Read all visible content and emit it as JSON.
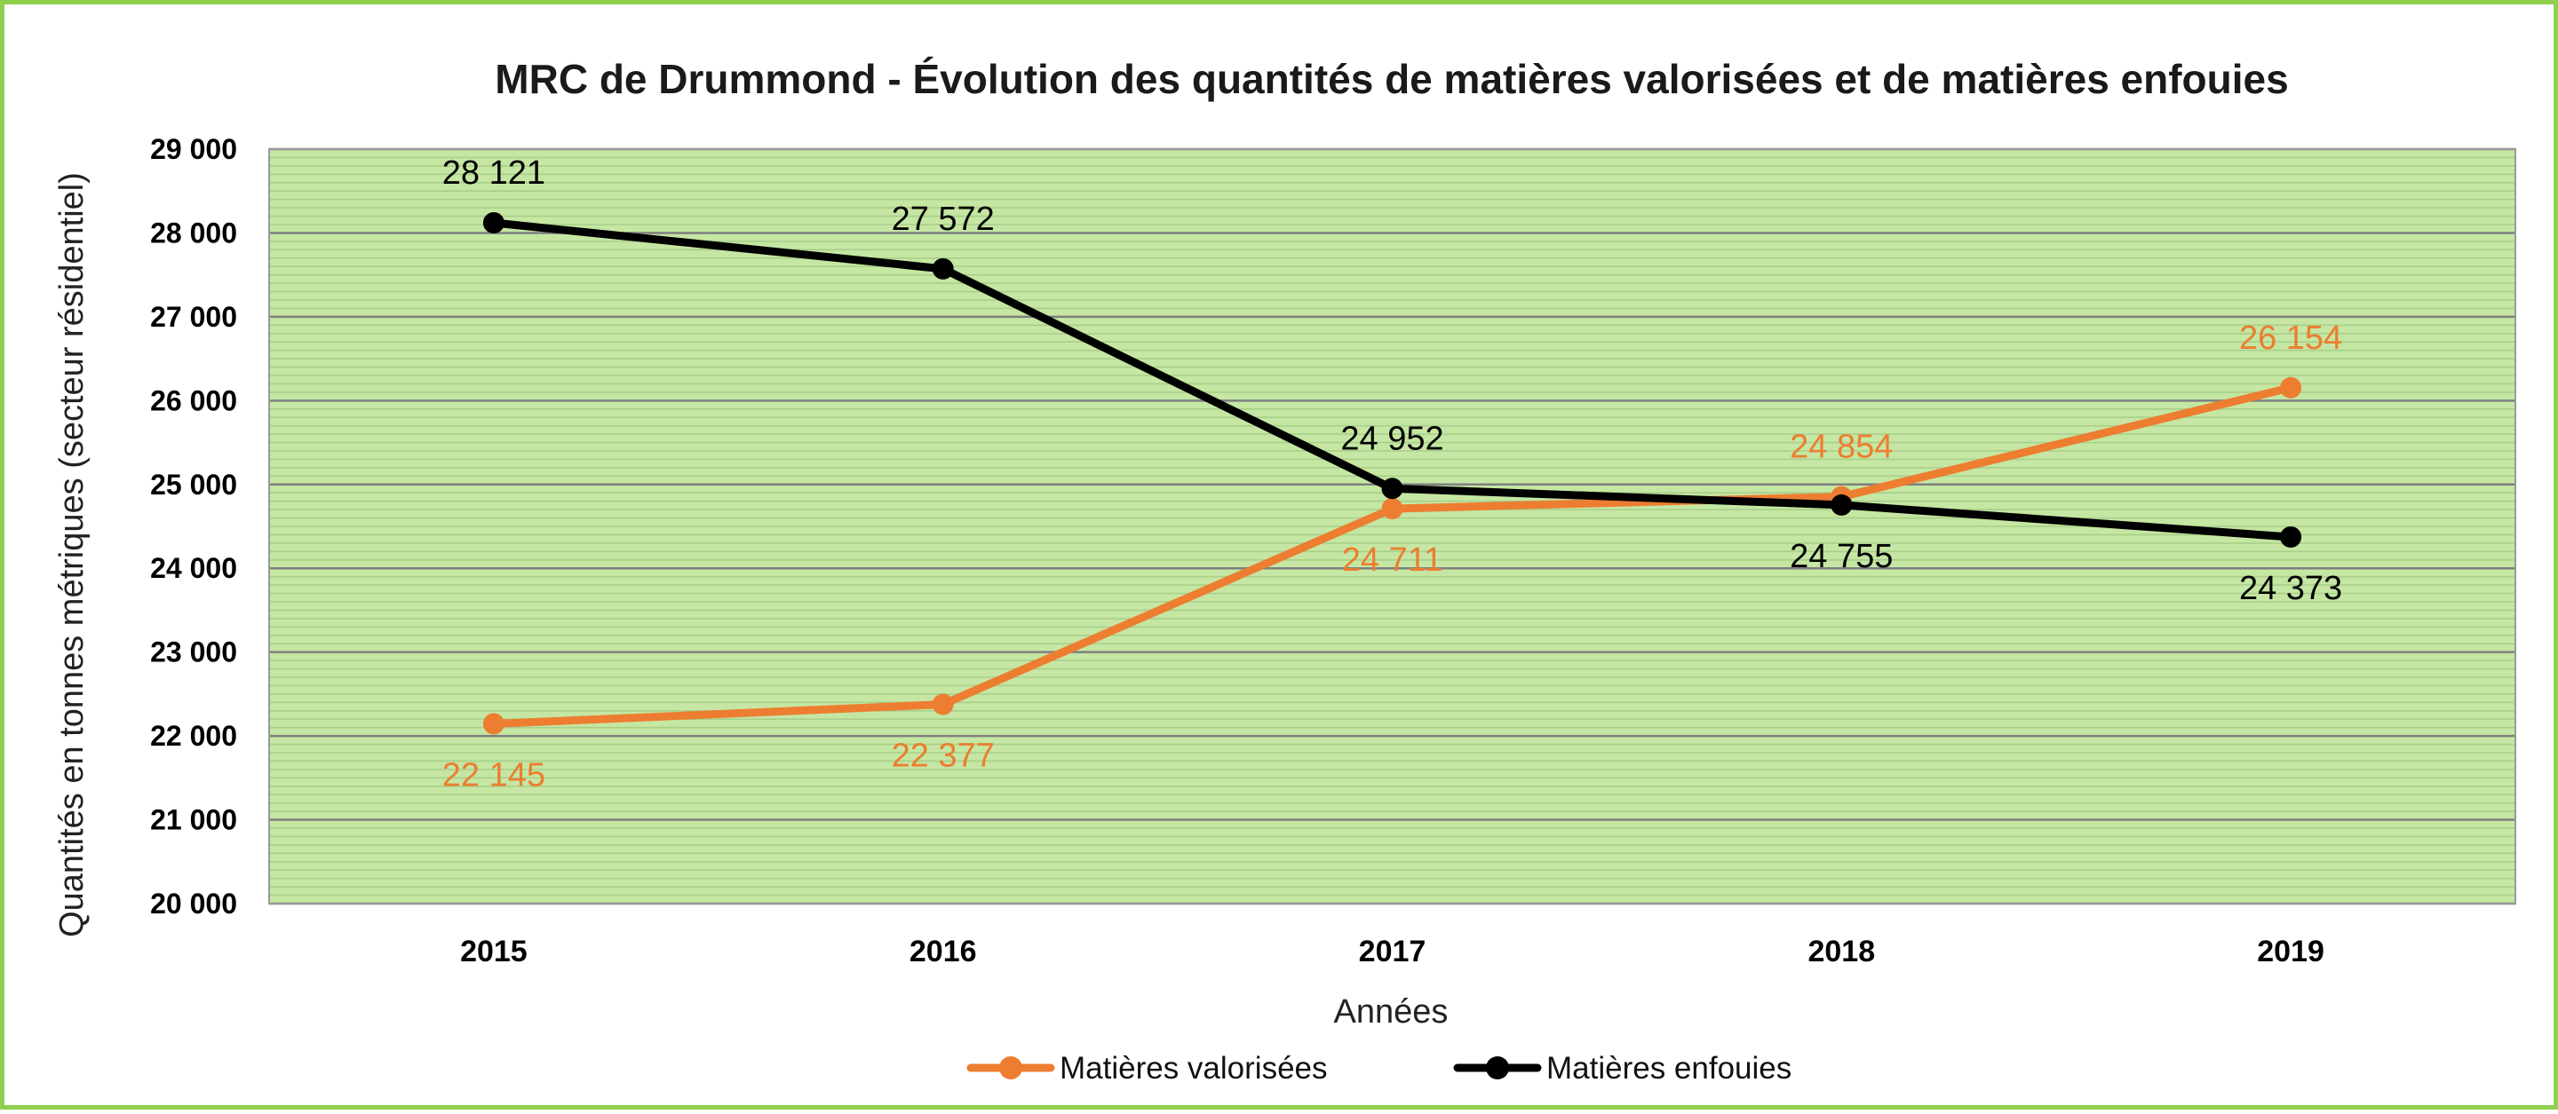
{
  "chart_data": {
    "type": "line",
    "title": "MRC de Drummond - Évolution des quantités de matières valorisées et de matières enfouies",
    "xlabel": "Années",
    "ylabel": "Quantités en tonnes métriques (secteur résidentiel)",
    "categories": [
      "2015",
      "2016",
      "2017",
      "2018",
      "2019"
    ],
    "ylim": [
      20000,
      29000
    ],
    "yticks": [
      20000,
      21000,
      22000,
      23000,
      24000,
      25000,
      26000,
      27000,
      28000,
      29000
    ],
    "ytick_labels": [
      "20 000",
      "21 000",
      "22 000",
      "23 000",
      "24 000",
      "25 000",
      "26 000",
      "27 000",
      "28 000",
      "29 000"
    ],
    "grid": true,
    "legend_position": "bottom",
    "plot_background": "#c5e7a3",
    "series": [
      {
        "name": "Matières valorisées",
        "color": "#ed7d31",
        "values": [
          22145,
          22377,
          24711,
          24854,
          26154
        ],
        "labels": [
          "22 145",
          "22 377",
          "24 711",
          "24 854",
          "26 154"
        ],
        "label_positions": [
          "below",
          "below",
          "below",
          "above",
          "above"
        ]
      },
      {
        "name": "Matières enfouies",
        "color": "#000000",
        "values": [
          28121,
          27572,
          24952,
          24755,
          24373
        ],
        "labels": [
          "28 121",
          "27 572",
          "24 952",
          "24 755",
          "24 373"
        ],
        "label_positions": [
          "above",
          "above",
          "above",
          "below",
          "below"
        ]
      }
    ]
  }
}
